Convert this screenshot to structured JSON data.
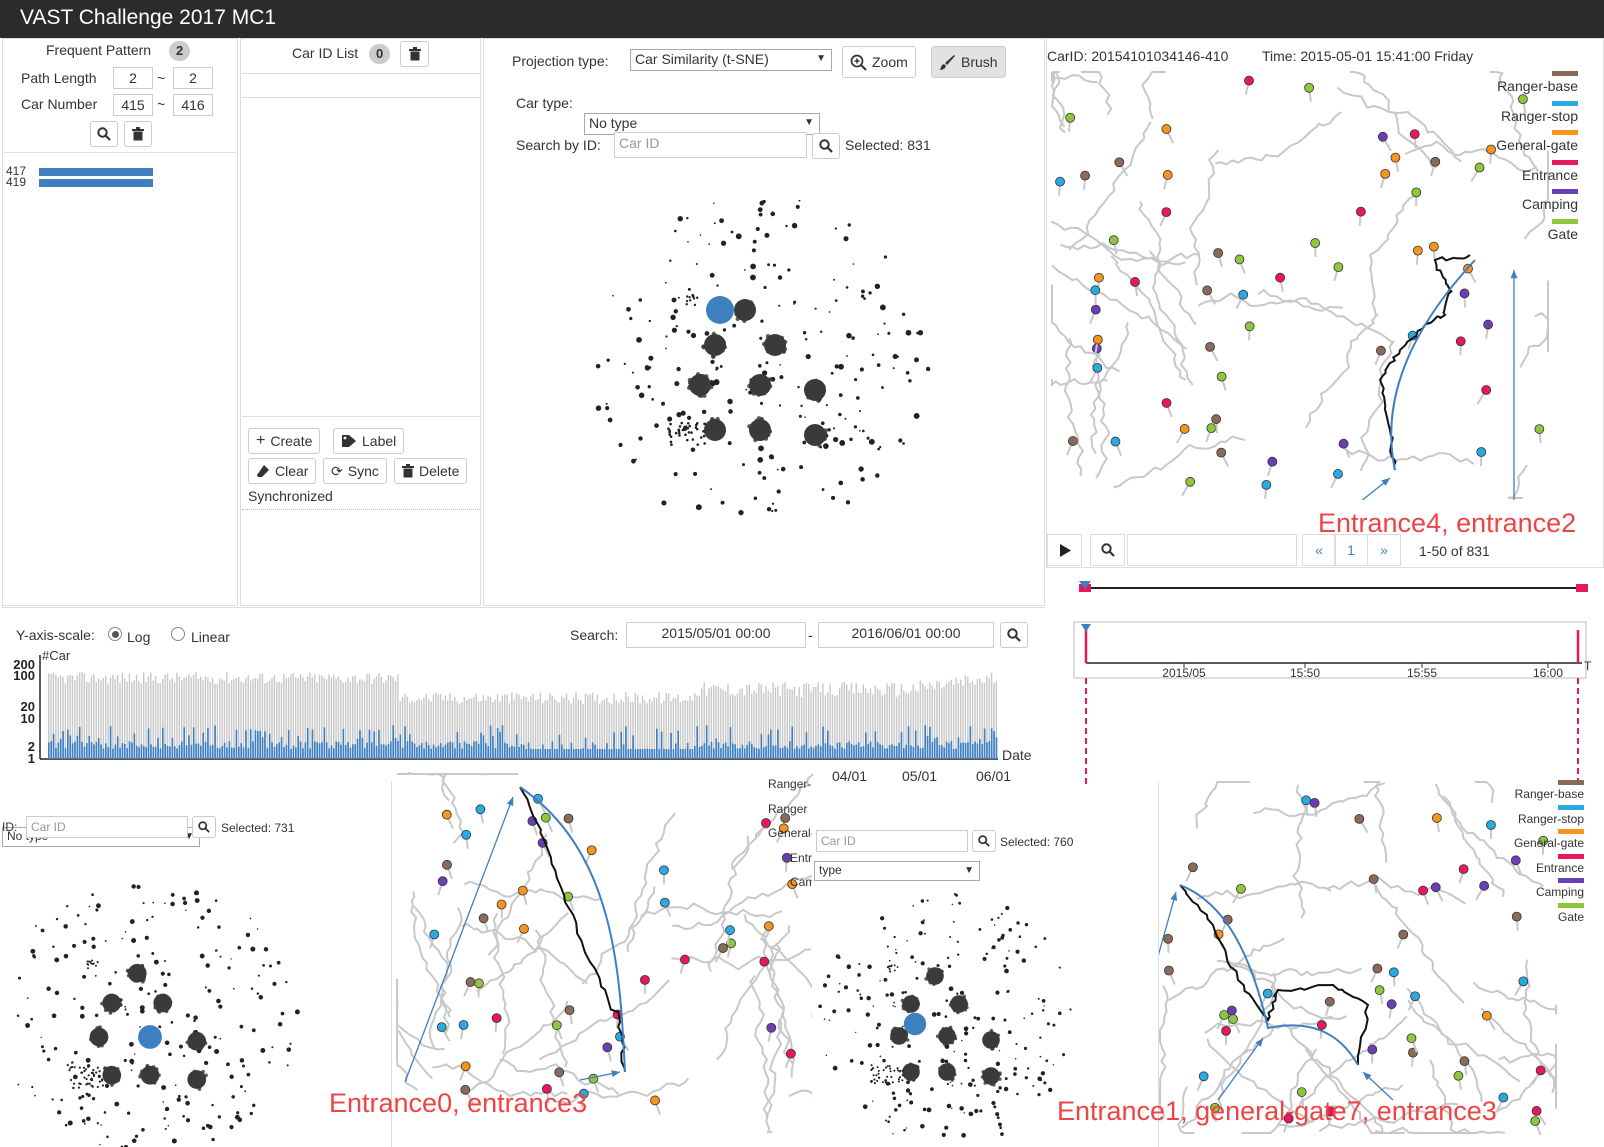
{
  "app": {
    "title": "VAST Challenge 2017 MC1"
  },
  "pattern_panel": {
    "frequent_pattern_label": "Frequent Pattern",
    "frequent_pattern_count": "2",
    "path_length_label": "Path Length",
    "path_length_min": "2",
    "path_length_max": "2",
    "car_number_label": "Car Number",
    "car_number_min": "415",
    "car_number_max": "416",
    "range_sep": "~",
    "bars": [
      {
        "label": "417",
        "value": 417
      },
      {
        "label": "419",
        "value": 419
      }
    ]
  },
  "car_list": {
    "title": "Car ID List",
    "count": "0",
    "create_label": "Create",
    "label_label": "Label",
    "clear_label": "Clear",
    "sync_label": "Sync",
    "delete_label": "Delete",
    "status": "Synchronized"
  },
  "projection": {
    "projection_type_label": "Projection type:",
    "projection_type_value": "Car Similarity (t-SNE)",
    "zoom_label": "Zoom",
    "brush_label": "Brush",
    "car_type_label": "Car type:",
    "car_type_value": "No type",
    "search_label": "Search by ID:",
    "search_placeholder": "Car ID",
    "selected": "Selected: 831"
  },
  "map_main": {
    "car_id": "CarID: 20154101034146-410",
    "time": "Time: 2015-05-01 15:41:00 Friday",
    "legend": [
      {
        "label": "Ranger-base",
        "color": "#8c6a5a"
      },
      {
        "label": "Ranger-stop",
        "color": "#29aae2"
      },
      {
        "label": "General-gate",
        "color": "#f7941d"
      },
      {
        "label": "Entrance",
        "color": "#e8185c"
      },
      {
        "label": "Camping",
        "color": "#6a3fb5"
      },
      {
        "label": "Gate",
        "color": "#8dc63f"
      }
    ],
    "annotation": "Entrance4, entrance2",
    "pager_page": "1",
    "pager_prev": "«",
    "pager_next": "»",
    "pager_info": "1-50 of 831"
  },
  "timeline": {
    "ticks": [
      "2015/05",
      "15:50",
      "15:55",
      "16:00"
    ],
    "end_label": "T"
  },
  "histogram": {
    "yscale_label": "Y-axis-scale:",
    "log_label": "Log",
    "linear_label": "Linear",
    "search_label": "Search:",
    "date_from": "2015/05/01 00:00",
    "date_sep": "-",
    "date_to": "2016/06/01 00:00",
    "y_title": "#Car",
    "x_title": "Date",
    "y_ticks": [
      "200",
      "100",
      "20",
      "10",
      "2",
      "1"
    ],
    "x_ticks": [
      "04/01",
      "05/01",
      "06/01"
    ]
  },
  "bottom_left": {
    "car_type_value": "No type",
    "id_label": "ID:",
    "search_placeholder": "Car ID",
    "selected": "Selected: 731",
    "annotation": "Entrance0, entrance3",
    "legend_partial": [
      "Ranger-",
      "Ranger",
      "General-",
      "Entr",
      "Cam"
    ]
  },
  "bottom_right": {
    "car_type_value": "type",
    "search_placeholder": "Car ID",
    "selected": "Selected: 760",
    "annotation": "Entrance1, general-gate7, entrance3",
    "legend": [
      {
        "label": "Ranger-base",
        "color": "#8c6a5a"
      },
      {
        "label": "Ranger-stop",
        "color": "#29aae2"
      },
      {
        "label": "General-gate",
        "color": "#f7941d"
      },
      {
        "label": "Entrance",
        "color": "#e8185c"
      },
      {
        "label": "Camping",
        "color": "#6a3fb5"
      },
      {
        "label": "Gate",
        "color": "#8dc63f"
      }
    ]
  },
  "icons": {
    "search": "search-icon",
    "trash": "trash-icon",
    "zoom": "zoom-in-icon",
    "brush": "brush-icon",
    "plus": "plus-icon",
    "tag": "tag-icon",
    "eraser": "eraser-icon",
    "sync": "sync-icon",
    "play": "play-icon"
  }
}
